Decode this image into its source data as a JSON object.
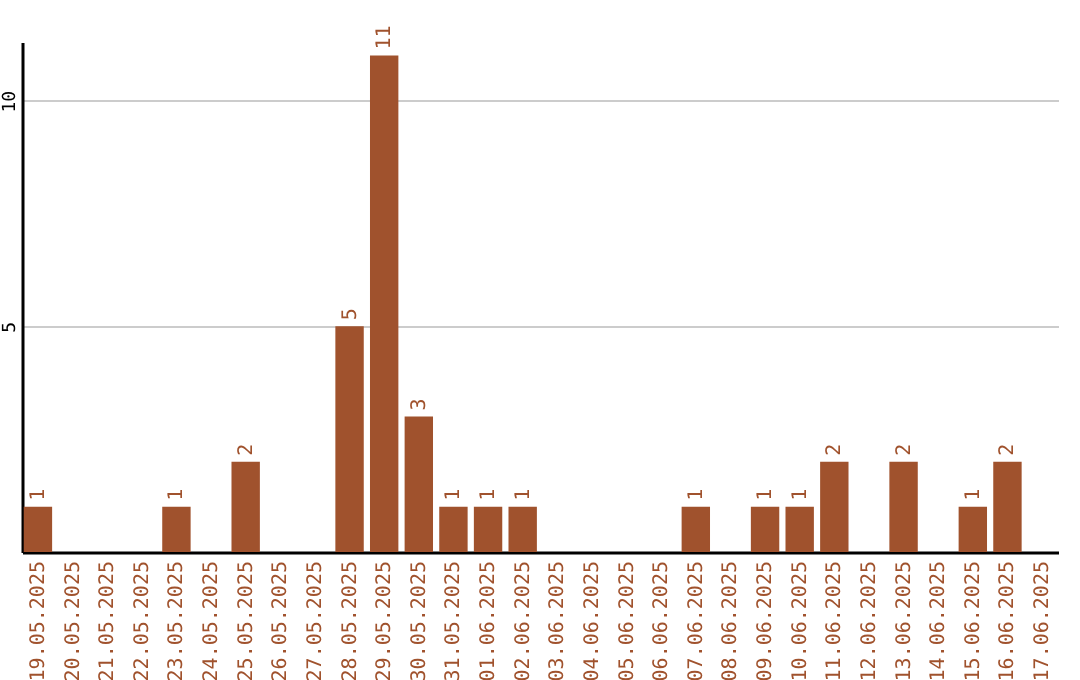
{
  "chart_data": {
    "type": "bar",
    "categories": [
      "19.05.2025",
      "20.05.2025",
      "21.05.2025",
      "22.05.2025",
      "23.05.2025",
      "24.05.2025",
      "25.05.2025",
      "26.05.2025",
      "27.05.2025",
      "28.05.2025",
      "29.05.2025",
      "30.05.2025",
      "31.05.2025",
      "01.06.2025",
      "02.06.2025",
      "03.06.2025",
      "04.06.2025",
      "05.06.2025",
      "06.06.2025",
      "07.06.2025",
      "08.06.2025",
      "09.06.2025",
      "10.06.2025",
      "11.06.2025",
      "12.06.2025",
      "13.06.2025",
      "14.06.2025",
      "15.06.2025",
      "16.06.2025",
      "17.06.2025"
    ],
    "values": [
      1,
      0,
      0,
      0,
      1,
      0,
      2,
      0,
      0,
      5,
      11,
      3,
      1,
      1,
      1,
      0,
      0,
      0,
      0,
      1,
      0,
      1,
      1,
      2,
      0,
      2,
      0,
      1,
      2,
      0
    ],
    "value_labels": [
      "1",
      null,
      null,
      null,
      "1",
      null,
      "2",
      null,
      null,
      "5",
      "11",
      "3",
      "1",
      "1",
      "1",
      null,
      null,
      null,
      null,
      "1",
      null,
      "1",
      "1",
      "2",
      null,
      "2",
      null,
      "1",
      "2",
      null
    ],
    "color": "#a0522d",
    "ylim": [
      0,
      11.3
    ],
    "yticks": [
      5,
      10
    ],
    "grid": "y"
  }
}
